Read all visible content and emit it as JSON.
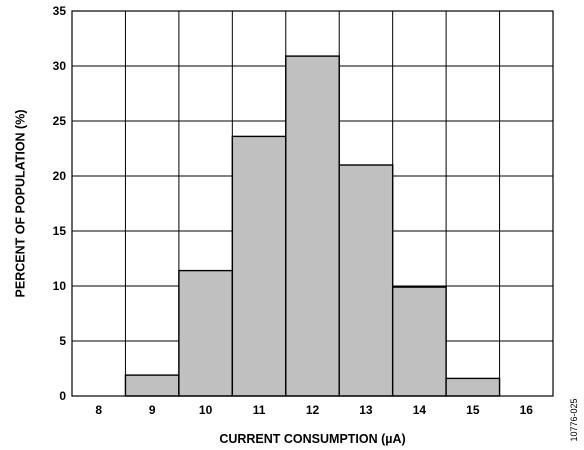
{
  "chart_data": {
    "type": "bar",
    "categories": [
      "8",
      "9",
      "10",
      "11",
      "12",
      "13",
      "14",
      "15",
      "16"
    ],
    "values": [
      0,
      1.9,
      11.4,
      23.6,
      30.9,
      21.0,
      9.9,
      1.6,
      0
    ],
    "title": "",
    "xlabel": "CURRENT CONSUMPTION (µA)",
    "ylabel": "PERCENT OF POPULATION (%)",
    "ylim": [
      0,
      35
    ],
    "yticks": [
      "0",
      "5",
      "10",
      "15",
      "20",
      "25",
      "30",
      "35"
    ],
    "grid": true,
    "legend": "none",
    "bar_color": "#c0c0c0",
    "annotation": "10776-025"
  }
}
